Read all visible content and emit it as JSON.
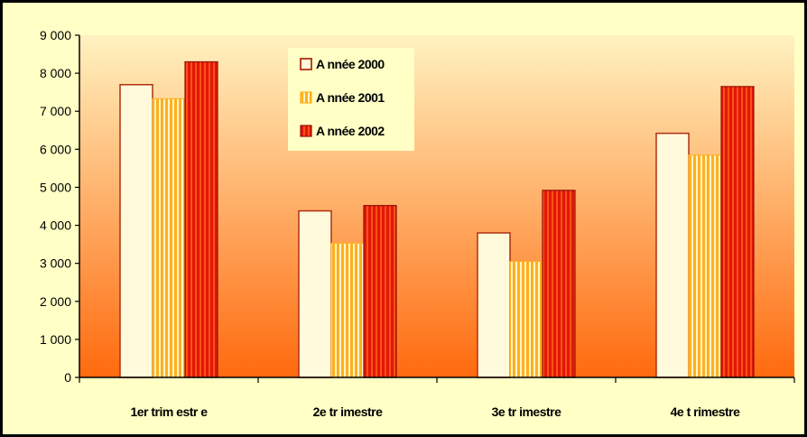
{
  "chart_data": {
    "type": "bar",
    "categories": [
      "1er trim estr e",
      "2e tr imestre",
      "3e tr imestre",
      "4e t rimestre"
    ],
    "series": [
      {
        "name": "A nnée 2000",
        "values": [
          7700,
          4380,
          3800,
          6420
        ]
      },
      {
        "name": "A nnée 2001",
        "values": [
          7330,
          3530,
          3050,
          5850
        ]
      },
      {
        "name": "A nnée 2002",
        "values": [
          8300,
          4520,
          4920,
          7650
        ]
      }
    ],
    "ylim": [
      0,
      9000
    ],
    "yticks": [
      "0",
      "1 000",
      "2 000",
      "3 000",
      "4 000",
      "5 000",
      "6 000",
      "7 000",
      "8 000",
      "9 000"
    ],
    "legend_position": "top-center",
    "grid": false
  },
  "colors": {
    "background": "#ffffc6",
    "plot_top": "#fff2c0",
    "plot_bottom": "#ff6a0e",
    "series_2000_fill": "#fffadc",
    "series_2000_border": "#b03010",
    "series_2001_stripe_a": "#ffb020",
    "series_2001_stripe_b": "#fff5c8",
    "series_2002_stripe_a": "#e01808",
    "series_2002_stripe_b": "#ff5018"
  }
}
